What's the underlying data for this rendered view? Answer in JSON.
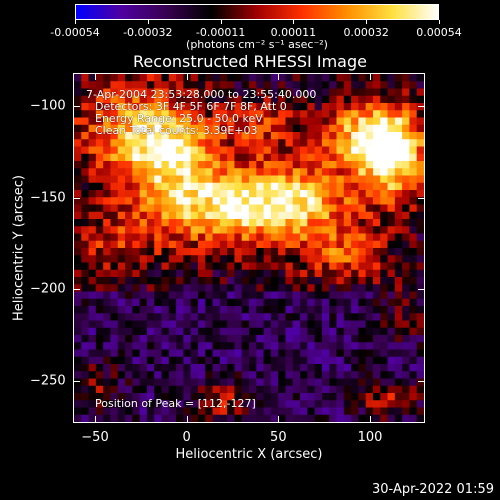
{
  "colorbar": {
    "ticks": [
      "-0.00054",
      "-0.00032",
      "-0.00011",
      "0.00011",
      "0.00032",
      "0.00054"
    ],
    "units": "(photons cm⁻² s⁻¹ asec⁻²)",
    "colors": [
      "#0000ff",
      "#5000a0",
      "#380050",
      "#000000",
      "#a00000",
      "#ff3000",
      "#ff9000",
      "#ffe040",
      "#ffffff"
    ]
  },
  "chart_data": {
    "type": "heatmap",
    "title": "Reconstructed RHESSI Image",
    "xlabel": "Heliocentric X (arcsec)",
    "ylabel": "Heliocentric Y (arcsec)",
    "xlim": [
      -62,
      130
    ],
    "ylim": [
      -273,
      -82
    ],
    "xticks": [
      -50,
      0,
      50,
      100
    ],
    "yticks": [
      -100,
      -150,
      -200,
      -250
    ],
    "xtick_labels": [
      "−50",
      "0",
      "50",
      "100"
    ],
    "ytick_labels": [
      "−100",
      "−150",
      "−200",
      "−250"
    ],
    "value_range": [
      -0.00054,
      0.00054
    ],
    "grid_resolution": [
      48,
      48
    ],
    "peak_position": [
      112,
      -127
    ],
    "annotations": [
      "7-Apr-2004 23:53:28.000 to 23:55:40.000",
      "Detectors: 3F 4F 5F 6F 7F 8F, Att 0",
      "Energy Range: 25.0 - 50.0 keV",
      "Clean    Total counts: 3.39E+03"
    ],
    "peak_label": "Position of Peak = [112,-127]"
  },
  "timestamp": "30-Apr-2022 01:59"
}
